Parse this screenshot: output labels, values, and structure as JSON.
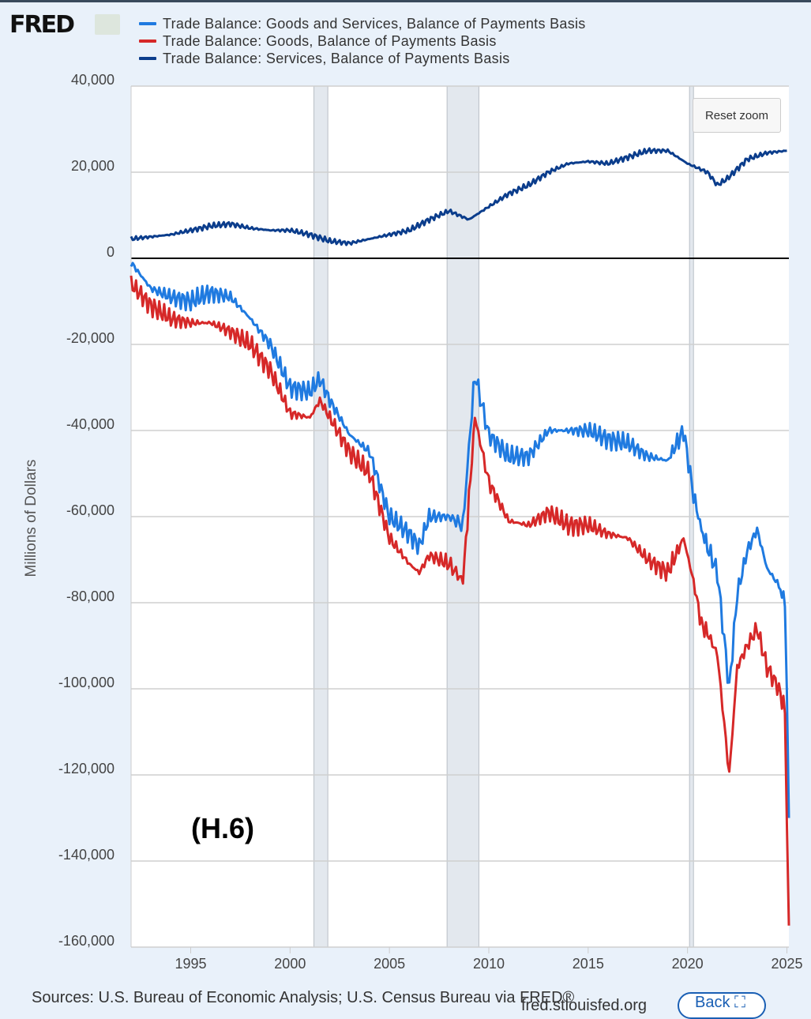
{
  "brand": {
    "logo": "FRED"
  },
  "reset_zoom": "Reset zoom",
  "annotation": "(H.6)",
  "footer": {
    "sources": "Sources: U.S. Bureau of Economic Analysis; U.S. Census Bureau via FRED®",
    "site": "fred.stlouisfed.org",
    "back": "Back"
  },
  "chart_data": {
    "type": "line",
    "title": "",
    "xlabel": "",
    "ylabel": "Millions of Dollars",
    "xlim": [
      1992,
      2025.1
    ],
    "ylim": [
      -160000,
      40000
    ],
    "x_ticks": [
      "1995",
      "2000",
      "2005",
      "2010",
      "2015",
      "2020",
      "2025"
    ],
    "y_ticks": [
      "40,000",
      "20,000",
      "0",
      "-20,000",
      "-40,000",
      "-60,000",
      "-80,000",
      "-100,000",
      "-120,000",
      "-140,000",
      "-160,000"
    ],
    "grid": true,
    "legend_placement": "top",
    "recessions": [
      [
        2001.2,
        2001.9
      ],
      [
        2007.9,
        2009.5
      ],
      [
        2020.1,
        2020.3
      ]
    ],
    "series": [
      {
        "name": "Trade Balance: Goods and Services, Balance of Payments Basis",
        "color": "#1f7ae0",
        "x": [
          1992,
          1993,
          1994,
          1995,
          1996,
          1997,
          1998,
          1999,
          2000,
          2001,
          2001.5,
          2002,
          2003,
          2004,
          2005,
          2006,
          2006.5,
          2007,
          2008,
          2008.7,
          2009.0,
          2009.3,
          2010,
          2011,
          2012,
          2013,
          2014,
          2015,
          2016,
          2017,
          2018,
          2019,
          2019.8,
          2020.3,
          2020.7,
          2021,
          2021.5,
          2022.1,
          2022.5,
          2023,
          2023.5,
          2024,
          2024.6,
          2024.9,
          2025.0,
          2025.1
        ],
        "y": [
          -1000,
          -7000,
          -9000,
          -10000,
          -8000,
          -9000,
          -14000,
          -20000,
          -30000,
          -31000,
          -28000,
          -33000,
          -41000,
          -45000,
          -60000,
          -64000,
          -67000,
          -60000,
          -60000,
          -62000,
          -44000,
          -27000,
          -41000,
          -46000,
          -46000,
          -40000,
          -40000,
          -40000,
          -42000,
          -43000,
          -46000,
          -47000,
          -40000,
          -55000,
          -63000,
          -67000,
          -73000,
          -100000,
          -78000,
          -68000,
          -63000,
          -72000,
          -76000,
          -80000,
          -100000,
          -130000
        ]
      },
      {
        "name": "Trade Balance: Goods, Balance of Payments Basis",
        "color": "#d62828",
        "x": [
          1992,
          1993,
          1994,
          1995,
          1996,
          1997,
          1998,
          1999,
          2000,
          2001,
          2001.5,
          2002,
          2003,
          2004,
          2005,
          2006,
          2006.5,
          2007,
          2008,
          2008.7,
          2009.0,
          2009.3,
          2010,
          2011,
          2012,
          2013,
          2014,
          2015,
          2016,
          2017,
          2018,
          2019,
          2019.8,
          2020.3,
          2020.7,
          2021,
          2021.5,
          2022.1,
          2022.5,
          2023,
          2023.5,
          2024,
          2024.6,
          2024.9,
          2025.0,
          2025.1
        ],
        "y": [
          -6000,
          -11000,
          -14000,
          -15000,
          -15000,
          -17000,
          -20000,
          -26000,
          -36000,
          -37000,
          -33000,
          -37000,
          -45000,
          -50000,
          -65000,
          -71000,
          -73000,
          -69000,
          -71000,
          -75000,
          -56000,
          -37000,
          -52000,
          -61000,
          -62000,
          -59000,
          -62000,
          -62000,
          -64000,
          -65000,
          -70000,
          -73000,
          -65000,
          -75000,
          -85000,
          -87000,
          -92000,
          -120000,
          -95000,
          -90000,
          -86000,
          -95000,
          -100000,
          -105000,
          -130000,
          -155000
        ]
      },
      {
        "name": "Trade Balance: Services, Balance of Payments Basis",
        "color": "#0b3d8c",
        "x": [
          1992,
          1993,
          1994,
          1995,
          1996,
          1997,
          1998,
          1999,
          2000,
          2001,
          2002,
          2003,
          2004,
          2005,
          2006,
          2007,
          2008,
          2009,
          2010,
          2011,
          2012,
          2013,
          2014,
          2015,
          2016,
          2017,
          2018,
          2019,
          2020,
          2021,
          2021.5,
          2022,
          2023,
          2024,
          2025
        ],
        "y": [
          4500,
          5000,
          5500,
          6500,
          7500,
          8000,
          7000,
          6500,
          6500,
          5500,
          4000,
          3500,
          4500,
          5500,
          6500,
          9000,
          11000,
          9000,
          12000,
          15000,
          17000,
          20000,
          22000,
          22500,
          22000,
          23500,
          25000,
          25000,
          22000,
          20000,
          17000,
          18500,
          23000,
          24500,
          25000
        ]
      }
    ]
  }
}
